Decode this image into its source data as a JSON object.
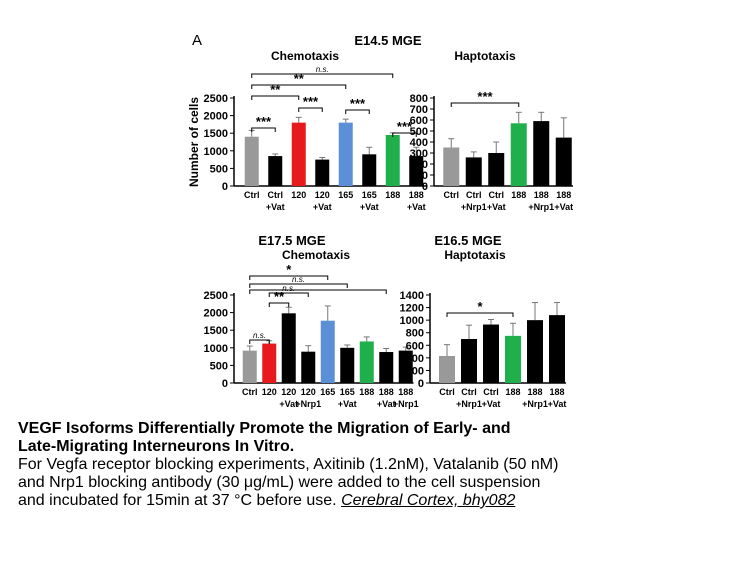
{
  "figure": {
    "panel_label": "A",
    "chart_data": [
      {
        "type": "bar",
        "title": "E14.5 MGE",
        "subtitle": "Chemotaxis",
        "ylabel": "Number of cells",
        "ylim": [
          0,
          2500
        ],
        "yticks": [
          0,
          500,
          1000,
          1500,
          2000,
          2500
        ],
        "categories": [
          "Ctrl",
          "Ctrl",
          "120",
          "120",
          "165",
          "165",
          "188",
          "188"
        ],
        "sublabels": [
          "",
          "+Vat",
          "",
          "+Vat",
          "",
          "+Vat",
          "",
          "+Vat"
        ],
        "values": [
          1400,
          850,
          1800,
          750,
          1800,
          900,
          1450,
          850
        ],
        "errors": [
          180,
          60,
          150,
          60,
          100,
          200,
          60,
          250
        ],
        "colors": [
          "#999999",
          "#000000",
          "#e8191c",
          "#000000",
          "#5b8fd6",
          "#000000",
          "#1fb04b",
          "#000000"
        ],
        "comparisons": [
          {
            "from": 0,
            "to": 1,
            "label": "***"
          },
          {
            "from": 2,
            "to": 3,
            "label": "***"
          },
          {
            "from": 4,
            "to": 5,
            "label": "***"
          },
          {
            "from": 6,
            "to": 7,
            "label": "***"
          },
          {
            "from": 0,
            "to": 2,
            "label": "**"
          },
          {
            "from": 0,
            "to": 4,
            "label": "**"
          },
          {
            "from": 0,
            "to": 6,
            "label": "n.s."
          }
        ]
      },
      {
        "type": "bar",
        "title": "",
        "subtitle": "Haptotaxis",
        "ylabel": "",
        "ylim": [
          0,
          800
        ],
        "yticks": [
          0,
          100,
          200,
          300,
          400,
          500,
          600,
          700,
          800
        ],
        "categories": [
          "Ctrl",
          "Ctrl",
          "Ctrl",
          "188",
          "188",
          "188"
        ],
        "sublabels": [
          "",
          "+Nrp1",
          "+Vat",
          "",
          "+Nrp1",
          "+Vat"
        ],
        "values": [
          350,
          260,
          300,
          570,
          590,
          440
        ],
        "errors": [
          80,
          50,
          100,
          100,
          80,
          180
        ],
        "colors": [
          "#999999",
          "#000000",
          "#000000",
          "#1fb04b",
          "#000000",
          "#000000"
        ],
        "comparisons": [
          {
            "from": 0,
            "to": 3,
            "label": "***"
          }
        ]
      },
      {
        "type": "bar",
        "title": "E17.5 MGE",
        "subtitle": "Chemotaxis",
        "ylabel": "",
        "ylim": [
          0,
          2500
        ],
        "yticks": [
          0,
          500,
          1000,
          1500,
          2000,
          2500
        ],
        "categories": [
          "Ctrl",
          "120",
          "120",
          "120",
          "165",
          "165",
          "188",
          "188"
        ],
        "sublabels": [
          "",
          "",
          "+Vat",
          "+Nrp1",
          "",
          "+Vat",
          "",
          "+Vat"
        ],
        "values": [
          920,
          1120,
          1980,
          890,
          1770,
          1000,
          1180,
          880
        ],
        "errors": [
          130,
          80,
          170,
          170,
          420,
          80,
          130,
          100
        ],
        "colors": [
          "#999999",
          "#e8191c",
          "#000000",
          "#000000",
          "#5b8fd6",
          "#000000",
          "#1fb04b",
          "#000000"
        ],
        "extra_label": "188 +Nrp1",
        "extra_value": 920,
        "extra_error": 100,
        "comparisons": [
          {
            "from": 0,
            "to": 1,
            "label": "n.s."
          },
          {
            "from": 1,
            "to": 2,
            "label": "**"
          },
          {
            "from": 1,
            "to": 3,
            "label": "n.s."
          },
          {
            "from": 0,
            "to": 4,
            "label": "*"
          },
          {
            "from": 0,
            "to": 5,
            "label": "n.s."
          },
          {
            "from": 0,
            "to": 7,
            "label": ""
          }
        ]
      },
      {
        "type": "bar",
        "title": "E16.5 MGE",
        "subtitle": "Haptotaxis",
        "ylabel": "",
        "ylim": [
          0,
          1400
        ],
        "yticks": [
          0,
          200,
          400,
          600,
          800,
          1000,
          1200,
          1400
        ],
        "categories": [
          "Ctrl",
          "Ctrl",
          "Ctrl",
          "188",
          "188",
          "188"
        ],
        "sublabels": [
          "",
          "+Nrp1",
          "+Vat",
          "",
          "+Nrp1",
          "+Vat"
        ],
        "values": [
          430,
          700,
          930,
          750,
          1000,
          1080
        ],
        "errors": [
          180,
          220,
          80,
          200,
          280,
          200
        ],
        "colors": [
          "#999999",
          "#000000",
          "#000000",
          "#1fb04b",
          "#000000",
          "#000000"
        ],
        "comparisons": [
          {
            "from": 0,
            "to": 3,
            "label": "*"
          }
        ]
      }
    ]
  },
  "caption": {
    "title_line1": "VEGF Isoforms Differentially Promote the Migration of Early- and",
    "title_line2": "Late-Migrating Interneurons In Vitro.",
    "body_line1": "For Vegfa receptor blocking experiments, Axitinib (1.2nM), Vatalanib (50 nM)",
    "body_line2": "and Nrp1 blocking antibody (30 μg/mL) were added to the cell suspension",
    "body_line3": "and incubated for 15min at 37 °C before use.",
    "citation": "Cerebral Cortex, bhy082"
  }
}
